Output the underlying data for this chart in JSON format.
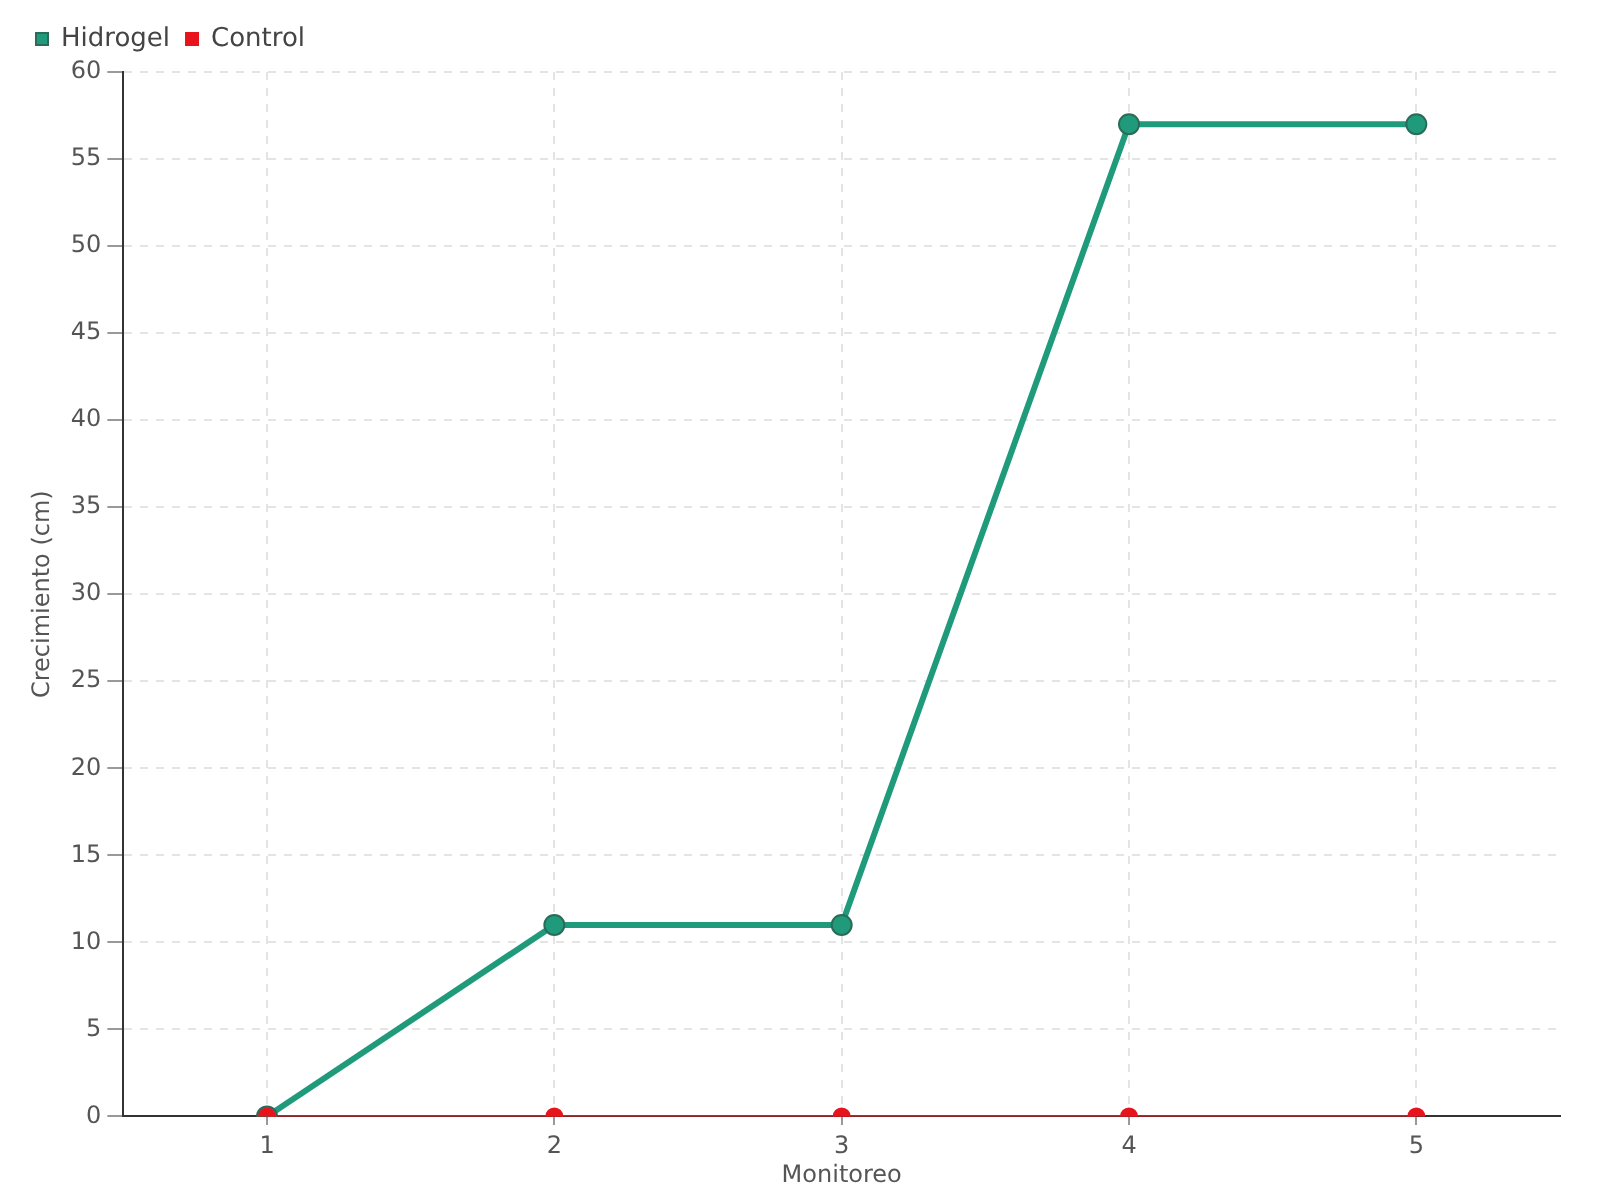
{
  "chart_data": {
    "type": "line",
    "xlabel": "Monitoreo",
    "ylabel": "Crecimiento (cm)",
    "categories": [
      "1",
      "2",
      "3",
      "4",
      "5"
    ],
    "series": [
      {
        "name": "Hidrogel",
        "color": "#1f9b7b",
        "values": [
          0,
          11,
          11,
          57,
          57
        ]
      },
      {
        "name": "Control",
        "color": "#e8141c",
        "values": [
          0,
          0,
          0,
          0,
          0
        ]
      }
    ],
    "ylim": [
      0,
      60
    ],
    "yticks": [
      0,
      5,
      10,
      15,
      20,
      25,
      30,
      35,
      40,
      45,
      50,
      55,
      60
    ],
    "grid": true,
    "legend": "top left",
    "marker": "circle",
    "line_style": "solid"
  }
}
